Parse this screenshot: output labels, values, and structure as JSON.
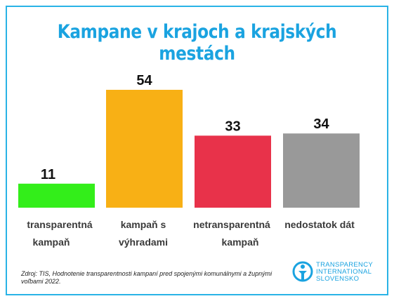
{
  "title": "Kampane v krajoch a krajských mestách",
  "chart_data": {
    "type": "bar",
    "title": "Kampane v krajoch a krajských mestách",
    "categories": [
      [
        "transparentná",
        "kampaň"
      ],
      [
        "kampaň s",
        "výhradami"
      ],
      [
        "netransparentná",
        "kampaň"
      ],
      [
        "nedostatok dát"
      ]
    ],
    "values": [
      11,
      54,
      33,
      34
    ],
    "value_labels": [
      "11",
      "54",
      "33",
      "34"
    ],
    "colors": [
      "#33ee1a",
      "#f8b015",
      "#e8324a",
      "#999999"
    ],
    "ylim": [
      0,
      54
    ],
    "grid": false,
    "legend": "none"
  },
  "source": "Zdroj: TIS, Hodnotenie transparentnosti kampaní pred spojenými komunálnymi a župnými voľbami 2022.",
  "logo": {
    "icon": "transparency-international-logo-icon",
    "lines": [
      "TRANSPARENCY",
      "INTERNATIONAL",
      "SLOVENSKO"
    ]
  },
  "accent_color": "#1aa3e0"
}
